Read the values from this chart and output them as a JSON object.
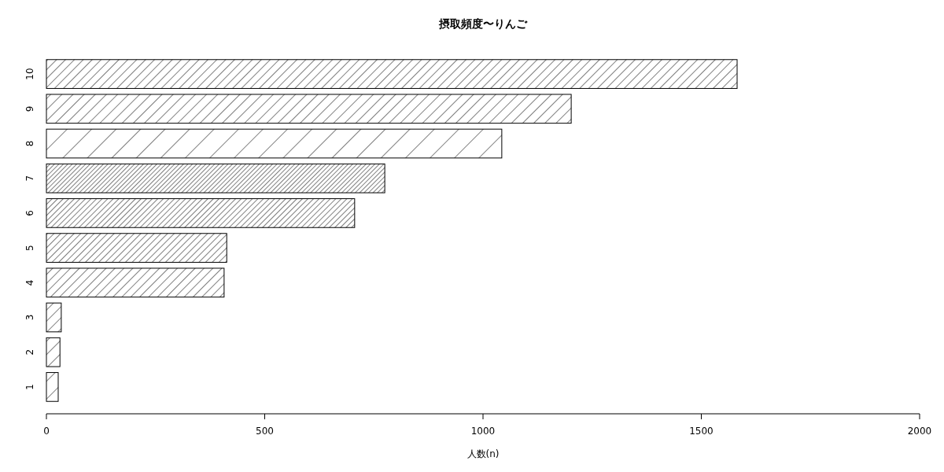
{
  "chart_data": {
    "type": "bar",
    "orientation": "horizontal",
    "title": "摂取頻度〜りんご",
    "xlabel": "人数(n)",
    "categories": [
      "10",
      "9",
      "8",
      "7",
      "6",
      "5",
      "4",
      "3",
      "2",
      "1"
    ],
    "values": [
      1582,
      1202,
      1043,
      775,
      706,
      413,
      407,
      34,
      31,
      27
    ],
    "color": "#000000",
    "xlim": [
      0,
      2000
    ],
    "xticks": [
      0,
      500,
      1000,
      1500,
      2000
    ],
    "grid": false
  }
}
